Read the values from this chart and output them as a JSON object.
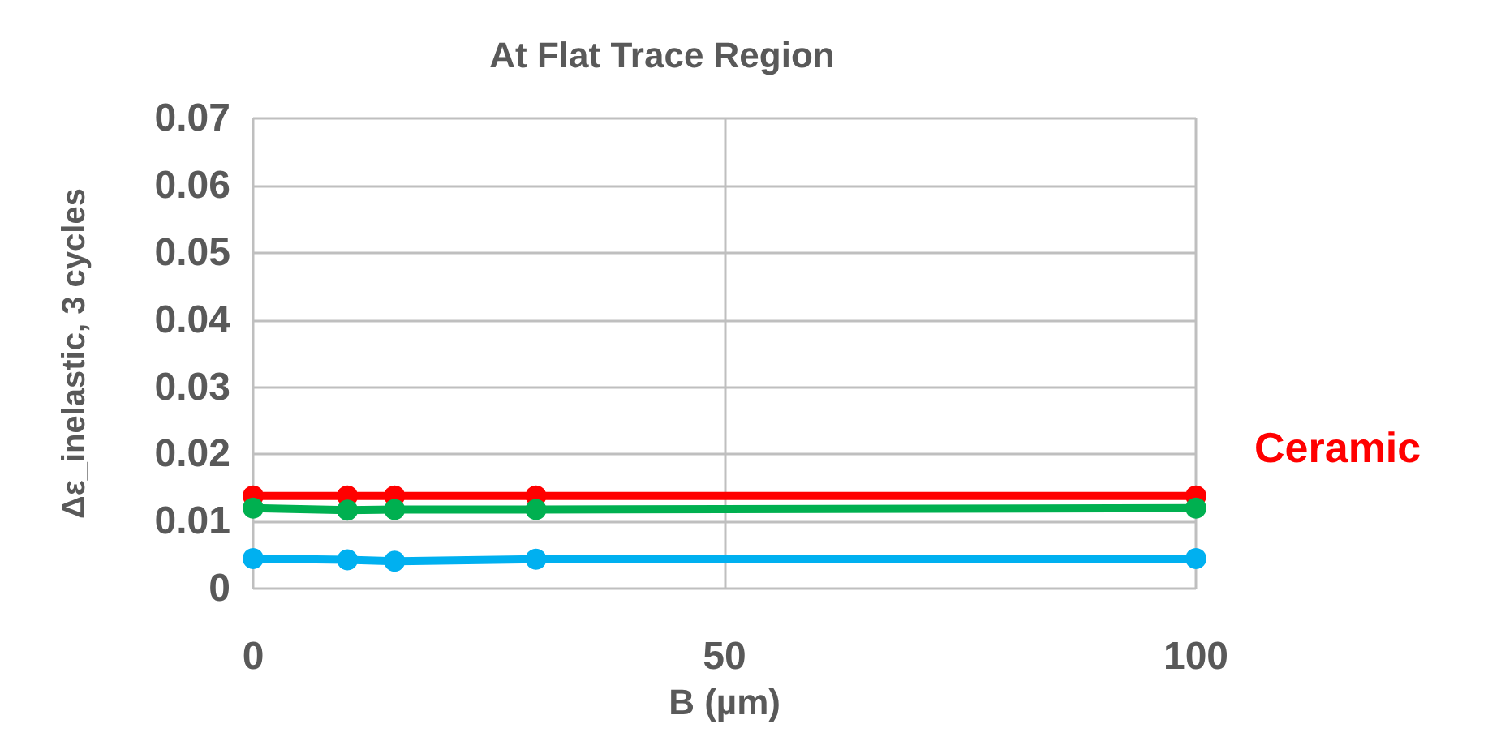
{
  "chart_data": {
    "type": "line",
    "title": "At Flat Trace Region",
    "xlabel": "B (µm)",
    "ylabel": "Δε_inelastic, 3 cycles",
    "x": [
      0,
      10,
      15,
      30,
      100
    ],
    "series": [
      {
        "name": "Ceramic",
        "color": "#ff0000",
        "values": [
          0.0138,
          0.0138,
          0.0138,
          0.0138,
          0.0138
        ]
      },
      {
        "color": "#00b050",
        "values": [
          0.012,
          0.0117,
          0.0118,
          0.0118,
          0.012
        ]
      },
      {
        "color": "#00b0f0",
        "values": [
          0.0045,
          0.0043,
          0.0041,
          0.0044,
          0.0045
        ]
      }
    ],
    "xlim": [
      0,
      100
    ],
    "xticks": [
      0,
      50,
      100
    ],
    "ylim": [
      0,
      0.07
    ],
    "yticks": [
      0,
      0.01,
      0.02,
      0.03,
      0.04,
      0.05,
      0.06,
      0.07
    ],
    "grid": true,
    "marker": "circle",
    "line_style": "solid"
  }
}
